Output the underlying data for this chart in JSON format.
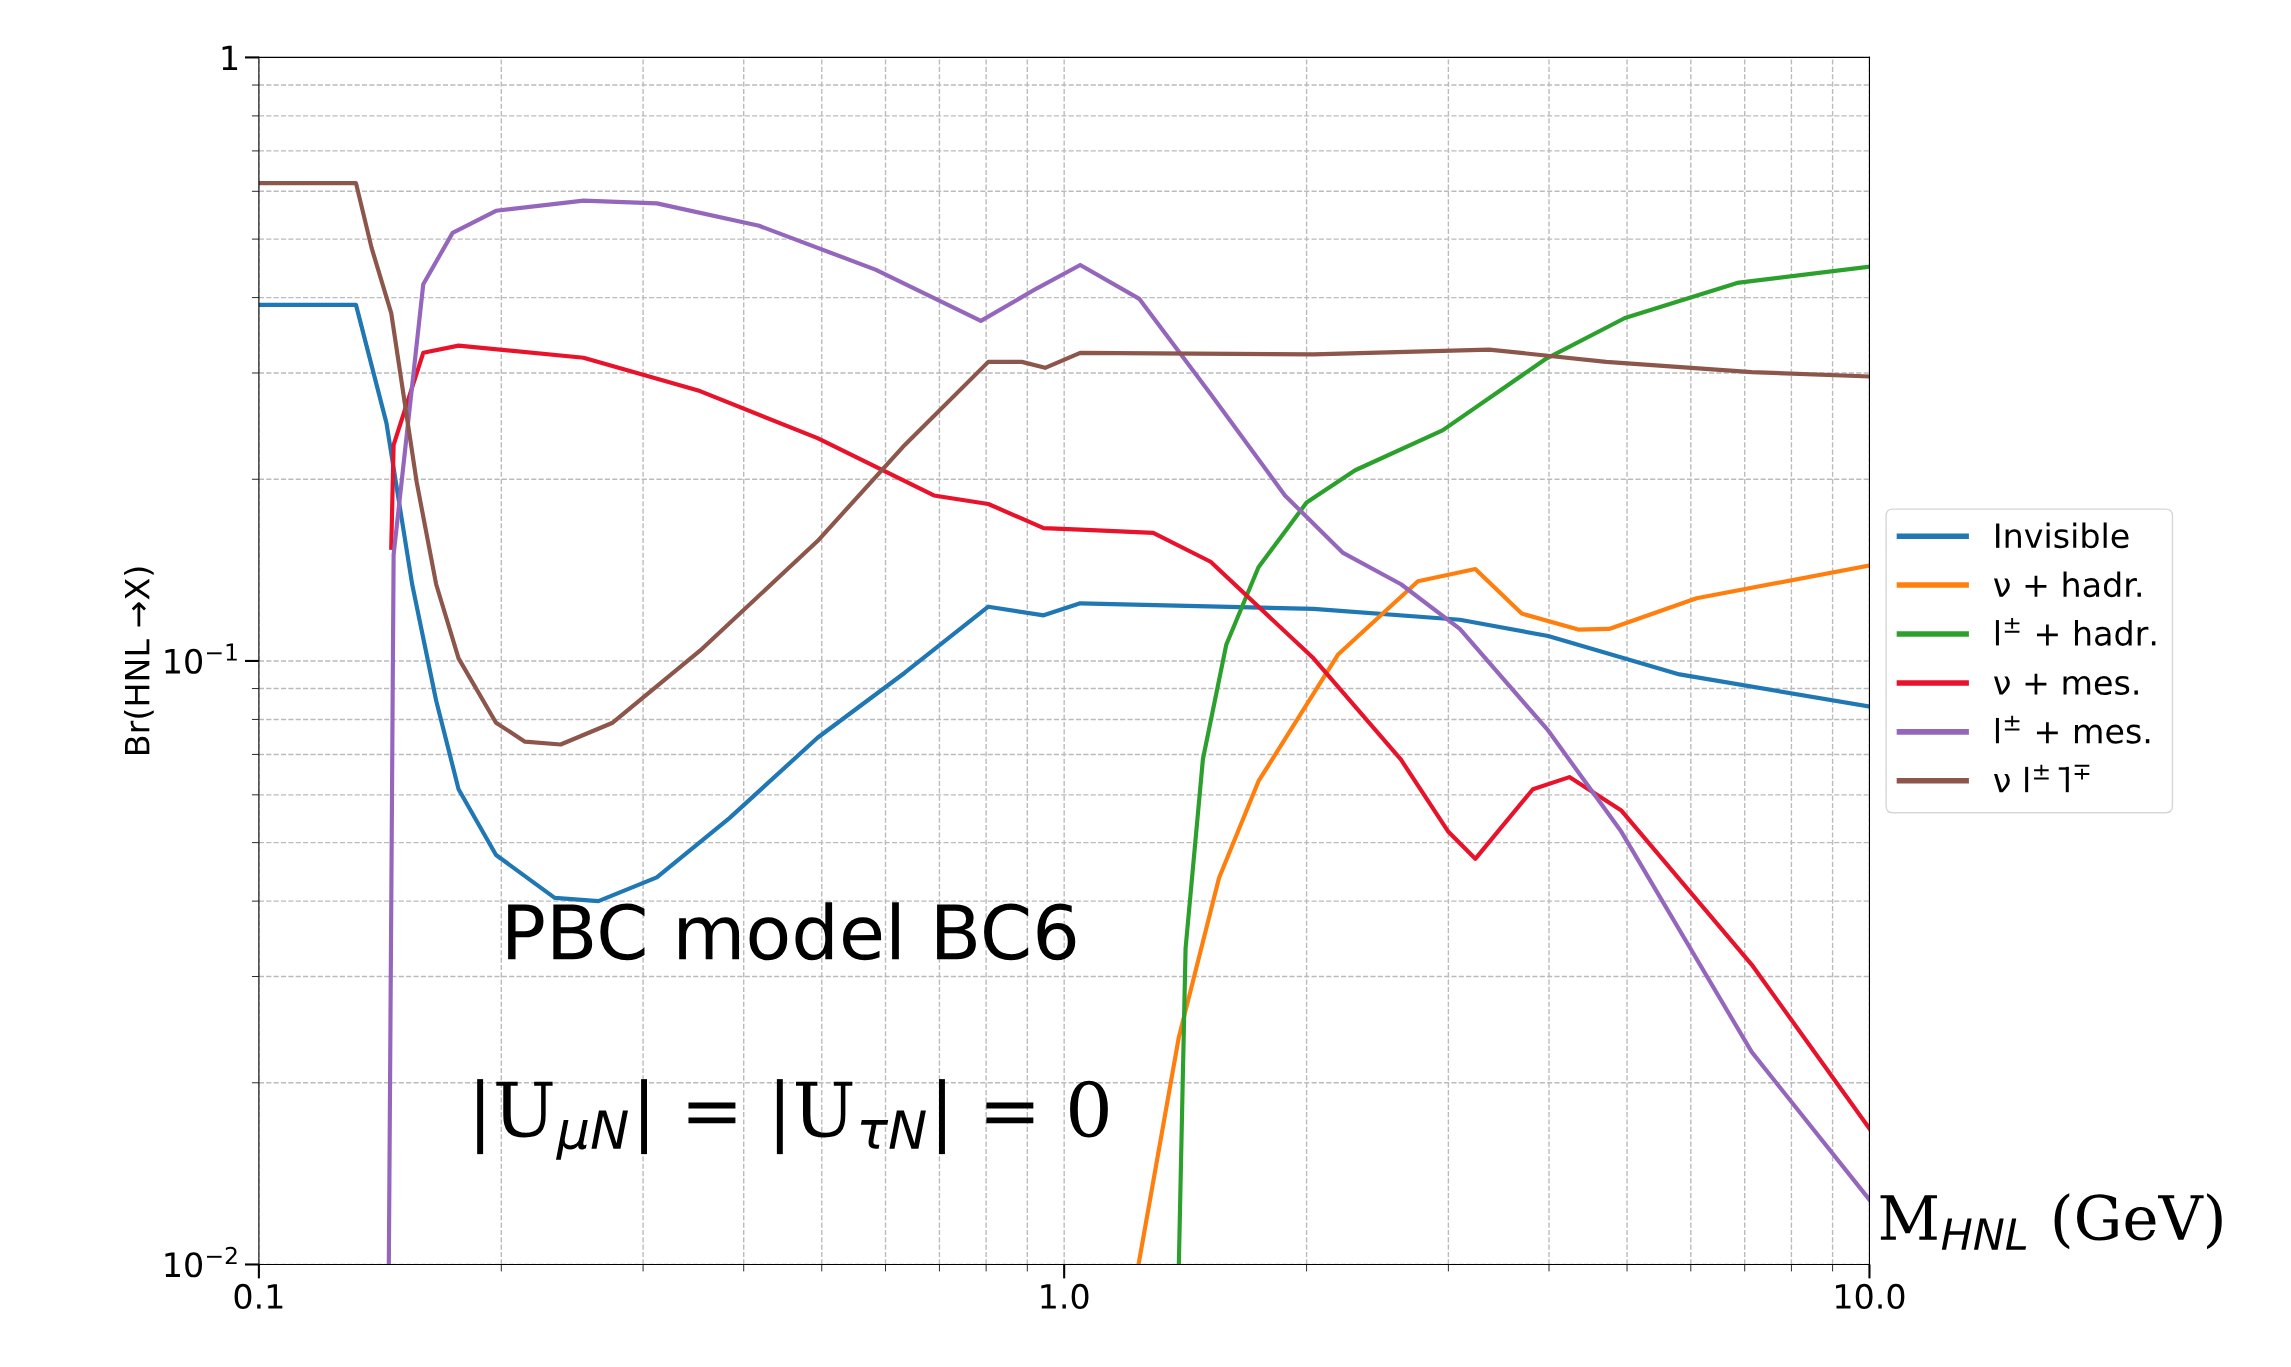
{
  "chart_data": {
    "type": "line",
    "ylabel": "Br(HNL →X)",
    "xlabel": "M$_{HNL}$ (GeV)",
    "annotations": [
      "PBC model BC6",
      "|U$_{μN}$| = |U$_{τN}$| = 0"
    ],
    "log": "xy",
    "grid": true,
    "legend": "right",
    "line_style": "solid",
    "xlim": [
      0.1,
      10
    ],
    "xticks": [
      {
        "value": 0.1,
        "label": "0.1"
      },
      {
        "value": 1,
        "label": "1.0"
      },
      {
        "value": 10,
        "label": "10.0"
      }
    ],
    "ylim": [
      0.01,
      1
    ],
    "yticks": [
      {
        "value": 0.01,
        "label": "10$^{−2}$"
      },
      {
        "value": 0.1,
        "label": "10$^{−1}$"
      },
      {
        "value": 1,
        "label": "1"
      }
    ],
    "series": [
      {
        "name": "Invisible",
        "color": "#1f77b4",
        "x": [
          0.1,
          0.132,
          0.144,
          0.155,
          0.166,
          0.177,
          0.197,
          0.233,
          0.264,
          0.312,
          0.384,
          0.494,
          0.634,
          0.805,
          0.943,
          1.047,
          2.04,
          3.1,
          3.99,
          5.81,
          10
        ],
        "values": [
          0.389,
          0.389,
          0.248,
          0.134,
          0.086,
          0.0613,
          0.0477,
          0.0405,
          0.04,
          0.0438,
          0.0549,
          0.0746,
          0.0956,
          0.123,
          0.119,
          0.1246,
          0.122,
          0.117,
          0.11,
          0.095,
          0.084
        ]
      },
      {
        "name": "ν + hadr.",
        "color": "#ff7f0e",
        "x": [
          1.237,
          1.388,
          1.557,
          1.743,
          2.19,
          2.75,
          3.24,
          3.7,
          4.35,
          4.75,
          6.1,
          10
        ],
        "values": [
          0.01,
          0.0238,
          0.0437,
          0.0632,
          0.1026,
          0.1355,
          0.142,
          0.1198,
          0.1127,
          0.113,
          0.127,
          0.144
        ]
      },
      {
        "name": "l$^{±}$ + hadr.",
        "color": "#2ca02c",
        "x": [
          1.388,
          1.415,
          1.487,
          1.59,
          1.743,
          2.0,
          2.298,
          2.95,
          3.97,
          4.97,
          6.85,
          10
        ],
        "values": [
          0.01,
          0.0334,
          0.0688,
          0.1065,
          0.143,
          0.183,
          0.207,
          0.241,
          0.317,
          0.37,
          0.423,
          0.45
        ]
      },
      {
        "name": "ν + mes.",
        "color": "#e8132b",
        "x": [
          0.146,
          0.147,
          0.16,
          0.177,
          0.253,
          0.353,
          0.494,
          0.689,
          0.805,
          0.943,
          1.047,
          1.29,
          1.52,
          2.04,
          2.62,
          3.0,
          3.24,
          3.82,
          4.24,
          4.92,
          7.14,
          10
        ],
        "values": [
          0.154,
          0.228,
          0.324,
          0.333,
          0.318,
          0.28,
          0.234,
          0.188,
          0.182,
          0.166,
          0.165,
          0.163,
          0.146,
          0.101,
          0.0686,
          0.0521,
          0.047,
          0.0613,
          0.0642,
          0.0565,
          0.0314,
          0.0168
        ]
      },
      {
        "name": "l$^{±}$ + mes.",
        "color": "#9467bd",
        "x": [
          0.145,
          0.147,
          0.16,
          0.174,
          0.197,
          0.253,
          0.312,
          0.418,
          0.583,
          0.788,
          0.924,
          1.047,
          1.24,
          1.52,
          1.88,
          2.22,
          2.62,
          3.1,
          3.99,
          4.92,
          7.14,
          10
        ],
        "values": [
          0.01,
          0.15,
          0.421,
          0.512,
          0.557,
          0.579,
          0.573,
          0.526,
          0.445,
          0.366,
          0.414,
          0.453,
          0.398,
          0.277,
          0.188,
          0.151,
          0.134,
          0.113,
          0.0767,
          0.0521,
          0.0225,
          0.0128
        ]
      },
      {
        "name": "ν l$^{±}$ l̄$^{∓}$",
        "color": "#8c564b",
        "x": [
          0.1,
          0.132,
          0.138,
          0.146,
          0.157,
          0.166,
          0.177,
          0.197,
          0.214,
          0.237,
          0.275,
          0.353,
          0.494,
          0.634,
          0.805,
          0.886,
          0.947,
          1.047,
          2.04,
          3.37,
          4.71,
          7.14,
          10
        ],
        "values": [
          0.619,
          0.619,
          0.484,
          0.377,
          0.198,
          0.134,
          0.101,
          0.079,
          0.0735,
          0.0727,
          0.079,
          0.104,
          0.158,
          0.228,
          0.313,
          0.313,
          0.306,
          0.324,
          0.322,
          0.328,
          0.313,
          0.301,
          0.296
        ]
      }
    ]
  }
}
